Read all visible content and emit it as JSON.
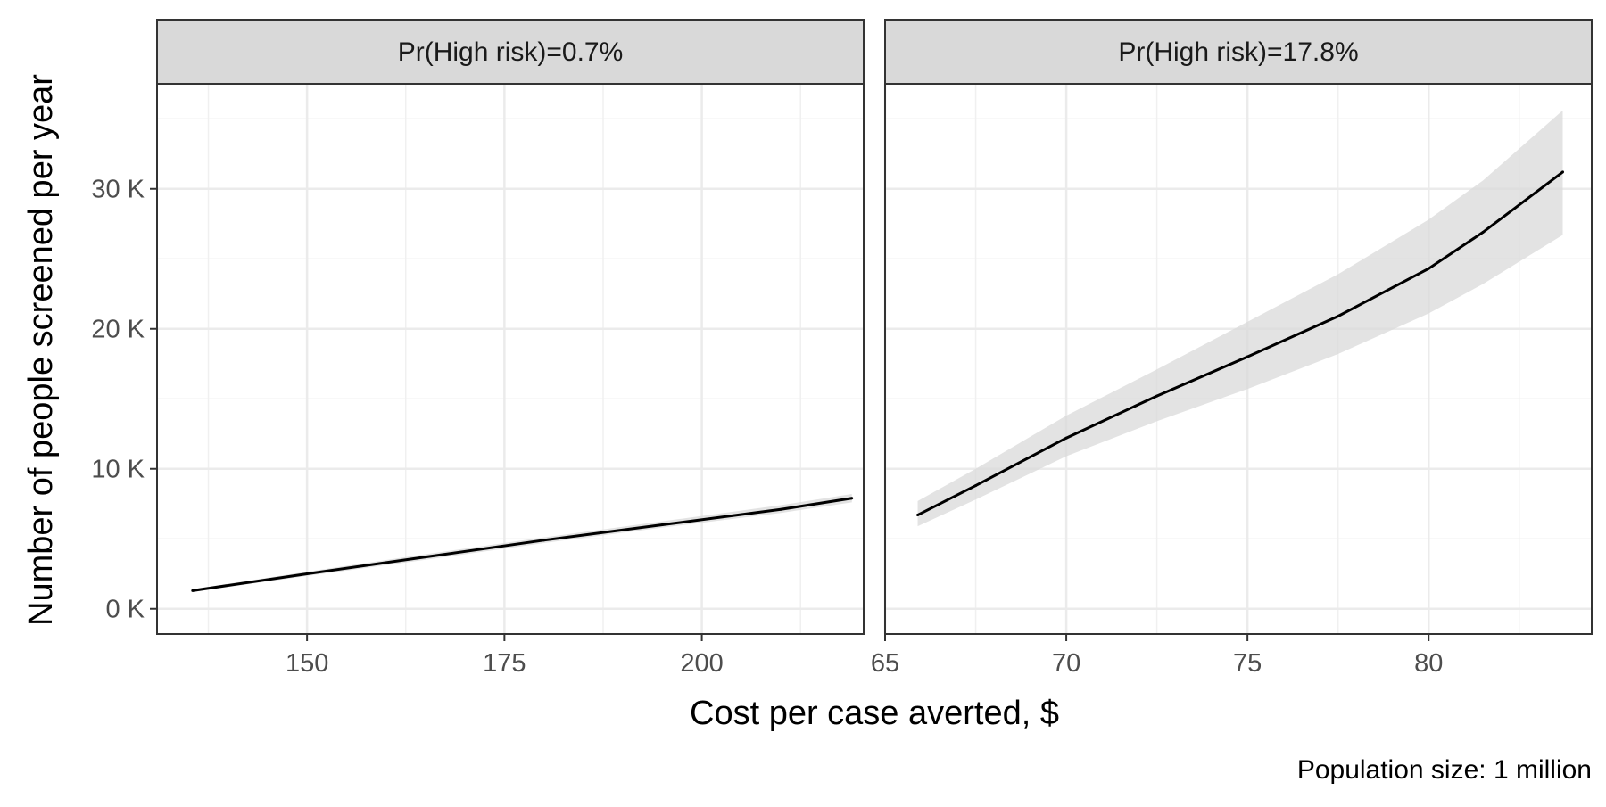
{
  "chart_data": {
    "type": "line",
    "xlabel": "Cost per case averted, $",
    "ylabel": "Number of people screened per year",
    "caption": "Population size: 1 million",
    "y_tick_labels": [
      "0 K",
      "10 K",
      "20 K",
      "30 K"
    ],
    "y_tick_values": [
      0,
      10000,
      20000,
      30000
    ],
    "ylim": [
      -1800,
      37500
    ],
    "grid": true,
    "line_color": "#000000",
    "ribbon_color": "#d9d9d9",
    "strip_color": "#d9d9d9",
    "panels": [
      {
        "strip_label": "Pr(High risk)=0.7%",
        "xlim": [
          131,
          220.5
        ],
        "x_tick_values": [
          150,
          175,
          200
        ],
        "x_tick_labels": [
          "150",
          "175",
          "200"
        ],
        "series": [
          {
            "x": [
              135.5,
              150,
              165,
              180,
              195,
              210,
              219
            ],
            "y": [
              1300,
              2500,
              3700,
              4900,
              6000,
              7100,
              7900
            ],
            "lower": [
              1200,
              2350,
              3500,
              4700,
              5800,
              6850,
              7600
            ],
            "upper": [
              1400,
              2650,
              3900,
              5100,
              6250,
              7400,
              8200
            ]
          }
        ]
      },
      {
        "strip_label": "Pr(High risk)=17.8%",
        "xlim": [
          65,
          84.5
        ],
        "x_tick_values": [
          65,
          70,
          75,
          80
        ],
        "x_tick_labels": [
          "65",
          "70",
          "75",
          "80"
        ],
        "series": [
          {
            "x": [
              65.9,
              67.5,
              70,
              72.5,
              75,
              77.5,
              80,
              81.5,
              83.7
            ],
            "y": [
              6700,
              8800,
              12200,
              15200,
              18000,
              20900,
              24300,
              26900,
              31200
            ],
            "lower": [
              5900,
              7800,
              10900,
              13400,
              15700,
              18200,
              21100,
              23200,
              26700
            ],
            "upper": [
              7700,
              10000,
              13800,
              17100,
              20500,
              23900,
              27800,
              30600,
              35600
            ]
          }
        ]
      }
    ]
  }
}
